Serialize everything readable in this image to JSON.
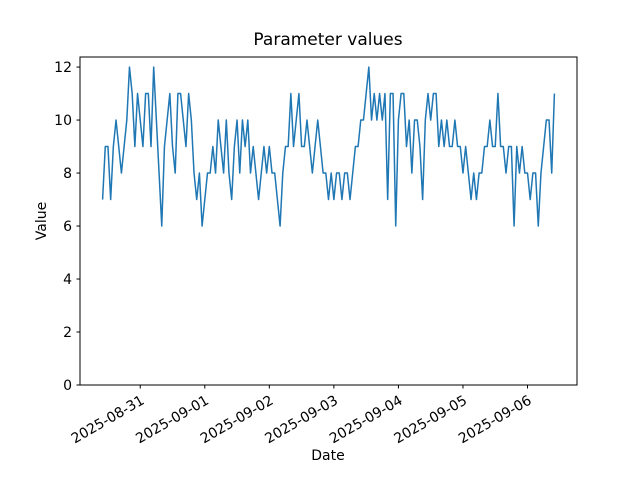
{
  "window": {
    "background_color": "#ffffff"
  },
  "chart_data": {
    "type": "line",
    "title": "Parameter values",
    "xlabel": "Date",
    "ylabel": "Value",
    "legend": "none",
    "grid": false,
    "series_name": "parameter-values",
    "series_color": "#1f77b4",
    "x_tick_labels": [
      "2025-08-31",
      "2025-09-01",
      "2025-09-02",
      "2025-09-03",
      "2025-09-04",
      "2025-09-05",
      "2025-09-06"
    ],
    "x_tick_hours": [
      14,
      38,
      62,
      86,
      110,
      134,
      158
    ],
    "x_tick_rotation_deg": 30,
    "y_ticks": [
      0,
      2,
      4,
      6,
      8,
      10,
      12
    ],
    "xlim_hours": [
      -8.4,
      176.4
    ],
    "ylim": [
      0,
      12.38
    ],
    "x_unit": "hours from series start (hourly samples, series starts ~14h before first tick)",
    "values": [
      7,
      9,
      9,
      7,
      9,
      10,
      9,
      8,
      9,
      10,
      12,
      11,
      9,
      11,
      10,
      9,
      11,
      11,
      9,
      12,
      10,
      8,
      6,
      9,
      10,
      11,
      9,
      8,
      11,
      11,
      10,
      9,
      11,
      10,
      8,
      7,
      8,
      6,
      7,
      8,
      8,
      9,
      8,
      10,
      9,
      8,
      10,
      8,
      7,
      9,
      10,
      8,
      10,
      9,
      10,
      8,
      9,
      8,
      7,
      8,
      9,
      8,
      9,
      8,
      8,
      7,
      6,
      8,
      9,
      9,
      11,
      9,
      10,
      11,
      9,
      9,
      10,
      9,
      8,
      9,
      10,
      9,
      8,
      8,
      7,
      8,
      7,
      8,
      8,
      7,
      8,
      8,
      7,
      8,
      9,
      9,
      10,
      10,
      11,
      12,
      10,
      11,
      10,
      11,
      10,
      11,
      7,
      11,
      11,
      6,
      10,
      11,
      11,
      9,
      10,
      8,
      10,
      10,
      9,
      7,
      10,
      11,
      10,
      11,
      11,
      9,
      10,
      9,
      10,
      9,
      9,
      10,
      9,
      9,
      8,
      9,
      8,
      7,
      8,
      7,
      8,
      8,
      9,
      9,
      10,
      9,
      9,
      11,
      9,
      9,
      8,
      9,
      9,
      6,
      9,
      8,
      9,
      8,
      8,
      7,
      8,
      8,
      6,
      8,
      9,
      10,
      10,
      8,
      11
    ]
  }
}
